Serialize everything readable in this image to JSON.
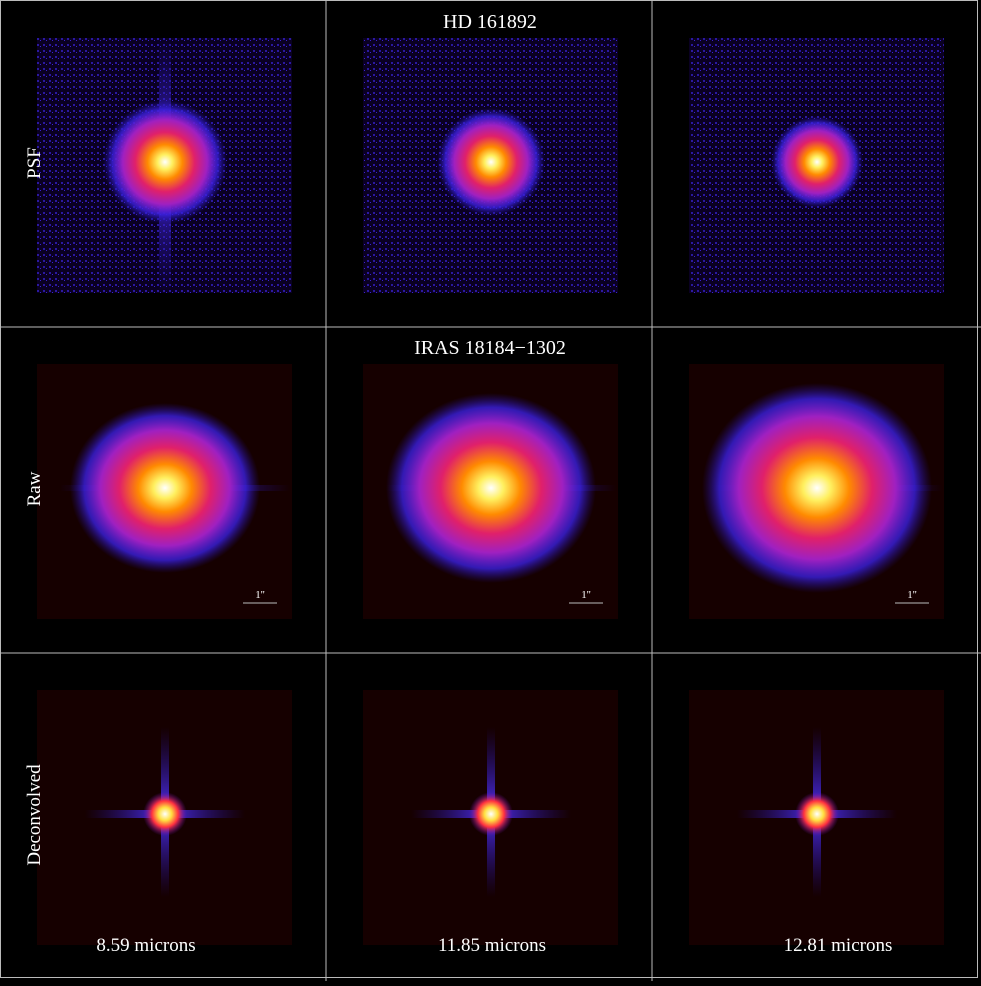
{
  "rows": [
    {
      "label": "PSF",
      "header": "HD 161892"
    },
    {
      "label": "Raw",
      "header": "IRAS 18184−1302",
      "scale_bars": [
        "1''",
        "1''",
        "1''"
      ]
    },
    {
      "label": "Deconvolved"
    }
  ],
  "columns": [
    "8.59 microns",
    "11.85 microns",
    "12.81 microns"
  ]
}
